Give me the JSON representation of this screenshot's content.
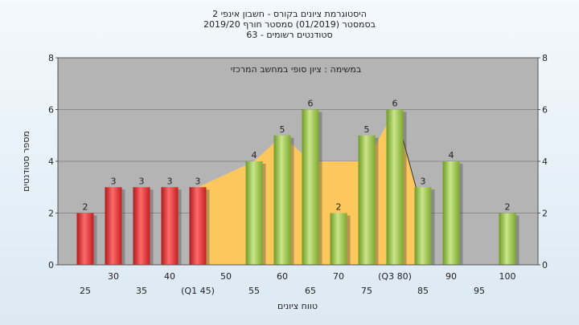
{
  "chart_data": {
    "type": "bar",
    "title_lines": [
      "היסטוגרמת ציונים בקורס - חשבון אינפי 2",
      "בסמסטר  (01/2019)  סמסטר חורף 2019/20",
      "סטודנטים רשומים - 63"
    ],
    "subtitle": "במשימה : ציון סופי במחשב המרכזי",
    "xlabel": "טווח ציונים",
    "ylabel": "מספר סטודנטים",
    "ylim": [
      0,
      8
    ],
    "yticks": [
      0,
      2,
      4,
      6,
      8
    ],
    "grid": true,
    "categories": [
      25,
      30,
      35,
      40,
      45,
      50,
      55,
      60,
      65,
      70,
      75,
      80,
      85,
      90,
      95,
      100
    ],
    "category_labels": [
      "25",
      "30",
      "35",
      "40",
      "(Q1 45)",
      "50",
      "55",
      "60",
      "65",
      "70",
      "75",
      "(Q3 80)",
      "85",
      "90",
      "95",
      "100"
    ],
    "values": [
      2,
      3,
      3,
      3,
      3,
      0,
      4,
      5,
      6,
      2,
      5,
      6,
      3,
      4,
      0,
      2
    ],
    "bar_colors": [
      "red",
      "red",
      "red",
      "red",
      "red",
      "none",
      "green",
      "green",
      "green",
      "green",
      "green",
      "green",
      "green",
      "green",
      "none",
      "green"
    ],
    "band": {
      "x": [
        45,
        55,
        60,
        65,
        70,
        75,
        80,
        85
      ],
      "y": [
        3,
        4,
        5,
        4,
        4,
        4,
        6,
        2
      ]
    },
    "colors": {
      "plot_bg": "#b4b4b4",
      "red": "#e53b3b",
      "green": "#9cc743",
      "band": "#fcc85e"
    }
  }
}
